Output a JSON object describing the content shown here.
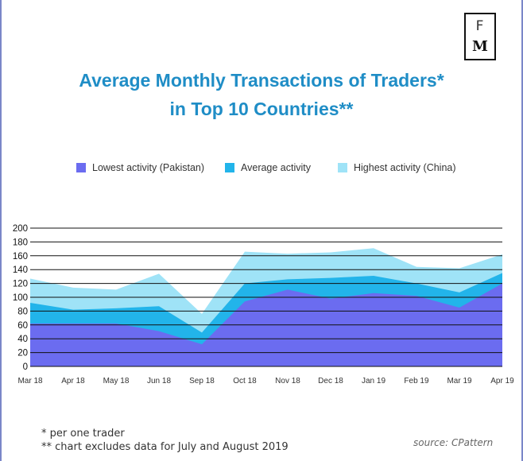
{
  "logo": {
    "top": "F",
    "bottom": "M"
  },
  "title": {
    "line1": "Average Monthly Transactions of Traders*",
    "line2": "in Top 10 Countries**"
  },
  "chart_data": {
    "type": "area",
    "title": "Average Monthly Transactions of Traders* in Top 10 Countries**",
    "categories": [
      "Mar 18",
      "Apr 18",
      "May 18",
      "Jun 18",
      "Sep 18",
      "Oct 18",
      "Nov 18",
      "Dec 18",
      "Jan 19",
      "Feb 19",
      "Mar 19",
      "Apr 19"
    ],
    "y_ticks": [
      0,
      20,
      40,
      60,
      80,
      100,
      120,
      140,
      160,
      180,
      200
    ],
    "ylim": [
      0,
      200
    ],
    "grid": true,
    "legend_position": "top",
    "series": [
      {
        "name": "Highest activity (China)",
        "color": "#9fe3f7",
        "values": [
          127,
          114,
          111,
          134,
          76,
          166,
          163,
          165,
          171,
          144,
          142,
          162
        ]
      },
      {
        "name": "Average activity",
        "color": "#22b4ea",
        "values": [
          92,
          82,
          84,
          87,
          49,
          120,
          126,
          128,
          131,
          120,
          107,
          135
        ]
      },
      {
        "name": "Lowest activity (Pakistan)",
        "color": "#6b6cf0",
        "values": [
          62,
          62,
          62,
          51,
          32,
          94,
          111,
          98,
          106,
          102,
          85,
          120
        ]
      }
    ]
  },
  "legend": [
    {
      "label": "Lowest activity (Pakistan)",
      "color": "#6b6cf0"
    },
    {
      "label": "Average activity",
      "color": "#22b4ea"
    },
    {
      "label": "Highest activity (China)",
      "color": "#9fe3f7"
    }
  ],
  "notes": {
    "n1": "*   per one trader",
    "n2": "** chart excludes data for July and August 2019"
  },
  "source": "source: CPattern"
}
